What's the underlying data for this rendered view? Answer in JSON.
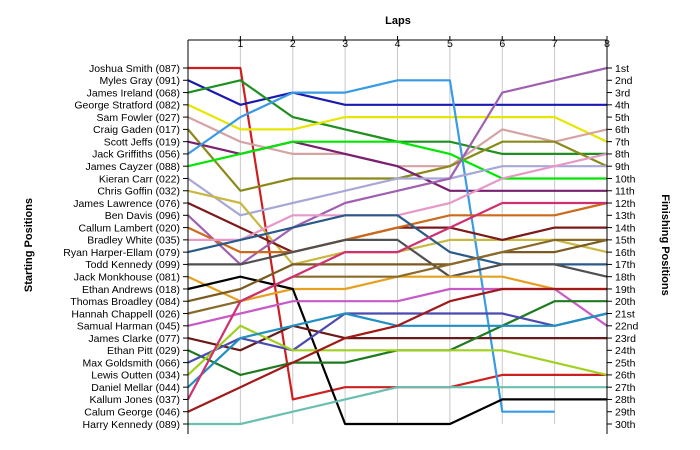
{
  "chart_data": {
    "type": "line",
    "title": "",
    "xlabel": "Laps",
    "ylabel_left": "Starting Positions",
    "ylabel_right": "Finishing Positions",
    "x": [
      0,
      1,
      2,
      3,
      4,
      5,
      6,
      7,
      8
    ],
    "x_tick_labels": [
      "1",
      "2",
      "3",
      "4",
      "5",
      "6",
      "7",
      "8"
    ],
    "ylim": [
      1,
      30
    ],
    "y_inverted": true,
    "grid": "vertical",
    "right_tick_labels": [
      "1st",
      "2nd",
      "3rd",
      "4th",
      "5th",
      "6th",
      "7th",
      "8th",
      "9th",
      "10th",
      "11th",
      "12th",
      "13th",
      "14th",
      "15th",
      "16th",
      "17th",
      "18th",
      "19th",
      "20th",
      "21st",
      "22nd",
      "23rd",
      "24th",
      "25th",
      "26th",
      "27th",
      "28th",
      "29th",
      "30th"
    ],
    "series": [
      {
        "name": "Joshua Smith (087)",
        "color": "#cc2020",
        "values": [
          1,
          1,
          28,
          27,
          27,
          27,
          26,
          26,
          26
        ]
      },
      {
        "name": "Myles Gray (091)",
        "color": "#1a1ab0",
        "values": [
          2,
          4,
          3,
          4,
          4,
          4,
          4,
          4,
          4
        ]
      },
      {
        "name": "James Ireland (068)",
        "color": "#1f8f1f",
        "values": [
          3,
          2,
          5,
          6,
          7,
          7,
          8,
          8,
          8
        ]
      },
      {
        "name": "George Stratford (082)",
        "color": "#e6e600",
        "values": [
          4,
          6,
          6,
          5,
          5,
          5,
          5,
          5,
          7
        ]
      },
      {
        "name": "Sam Fowler (027)",
        "color": "#d6a3a3",
        "values": [
          5,
          7,
          8,
          8,
          9,
          9,
          6,
          7,
          6
        ]
      },
      {
        "name": "Craig Gaden (017)",
        "color": "#8a8a1a",
        "values": [
          6,
          11,
          10,
          10,
          10,
          9,
          7,
          7,
          9
        ]
      },
      {
        "name": "Scott Jeffs (019)",
        "color": "#7a2070",
        "values": [
          7,
          8,
          7,
          8,
          9,
          11,
          11,
          11,
          11
        ]
      },
      {
        "name": "Jack Griffiths (056)",
        "color": "#3a9ae6",
        "values": [
          8,
          5,
          3,
          3,
          2,
          2,
          29,
          29,
          null
        ]
      },
      {
        "name": "James Cayzer (088)",
        "color": "#00e600",
        "values": [
          9,
          8,
          7,
          7,
          7,
          8,
          10,
          10,
          10
        ]
      },
      {
        "name": "Kieran Carr (022)",
        "color": "#a8a8d8",
        "values": [
          10,
          13,
          12,
          11,
          10,
          10,
          9,
          9,
          9
        ]
      },
      {
        "name": "Chris Goffin (032)",
        "color": "#c8b840",
        "values": [
          11,
          12,
          17,
          16,
          16,
          15,
          15,
          15,
          16
        ]
      },
      {
        "name": "James Lawrence (076)",
        "color": "#7a1a1a",
        "values": [
          12,
          14,
          16,
          15,
          14,
          14,
          15,
          14,
          14
        ]
      },
      {
        "name": "Ben Davis (096)",
        "color": "#a060b0",
        "values": [
          13,
          17,
          14,
          12,
          11,
          10,
          3,
          2,
          1
        ]
      },
      {
        "name": "Callum Lambert (020)",
        "color": "#cc6a1a",
        "values": [
          14,
          16,
          16,
          15,
          14,
          13,
          13,
          13,
          12
        ]
      },
      {
        "name": "Bradley White (035)",
        "color": "#e699c8",
        "values": [
          15,
          15,
          13,
          13,
          13,
          12,
          10,
          9,
          8
        ]
      },
      {
        "name": "Ryan Harper-Ellam (079)",
        "color": "#2a5a8a",
        "values": [
          16,
          15,
          14,
          13,
          13,
          16,
          17,
          17,
          17
        ]
      },
      {
        "name": "Todd Kennedy (099)",
        "color": "#505050",
        "values": [
          17,
          17,
          16,
          15,
          15,
          18,
          17,
          17,
          18
        ]
      },
      {
        "name": "Jack Monkhouse (081)",
        "color": "#e6a020",
        "values": [
          18,
          20,
          19,
          19,
          18,
          18,
          18,
          19,
          19
        ]
      },
      {
        "name": "Ethan Andrews (018)",
        "color": "#000000",
        "values": [
          19,
          18,
          19,
          30,
          30,
          30,
          28,
          28,
          28
        ]
      },
      {
        "name": "Thomas Broadley (084)",
        "color": "#7a5a20",
        "values": [
          20,
          19,
          17,
          17,
          17,
          17,
          16,
          16,
          15
        ]
      },
      {
        "name": "Hannah Chappell (026)",
        "color": "#8a6a2a",
        "values": [
          21,
          20,
          18,
          18,
          18,
          17,
          16,
          15,
          15
        ]
      },
      {
        "name": "Samual Harman (045)",
        "color": "#c85ac8",
        "values": [
          22,
          21,
          20,
          20,
          20,
          19,
          19,
          19,
          22
        ]
      },
      {
        "name": "James Clarke (077)",
        "color": "#6a1a1a",
        "values": [
          23,
          24,
          22,
          23,
          23,
          23,
          23,
          23,
          23
        ]
      },
      {
        "name": "Ethan Pitt (029)",
        "color": "#207a20",
        "values": [
          24,
          26,
          25,
          25,
          24,
          24,
          22,
          20,
          20
        ]
      },
      {
        "name": "Max Goldsmith (066)",
        "color": "#4a4ab0",
        "values": [
          25,
          23,
          24,
          21,
          21,
          21,
          21,
          22,
          21
        ]
      },
      {
        "name": "Lewis Outten (034)",
        "color": "#a0d020",
        "values": [
          26,
          22,
          24,
          24,
          24,
          24,
          24,
          25,
          26
        ]
      },
      {
        "name": "Daniel Mellar (044)",
        "color": "#2090c0",
        "values": [
          27,
          23,
          22,
          21,
          22,
          22,
          22,
          22,
          21
        ]
      },
      {
        "name": "Kallum Jones (037)",
        "color": "#d03070",
        "values": [
          28,
          20,
          18,
          16,
          16,
          14,
          12,
          12,
          12
        ]
      },
      {
        "name": "Calum George (046)",
        "color": "#a01a1a",
        "values": [
          29,
          27,
          25,
          23,
          22,
          20,
          19,
          19,
          19
        ]
      },
      {
        "name": "Harry Kennedy (089)",
        "color": "#6abfb0",
        "values": [
          30,
          30,
          29,
          28,
          27,
          27,
          27,
          27,
          27
        ]
      }
    ]
  }
}
